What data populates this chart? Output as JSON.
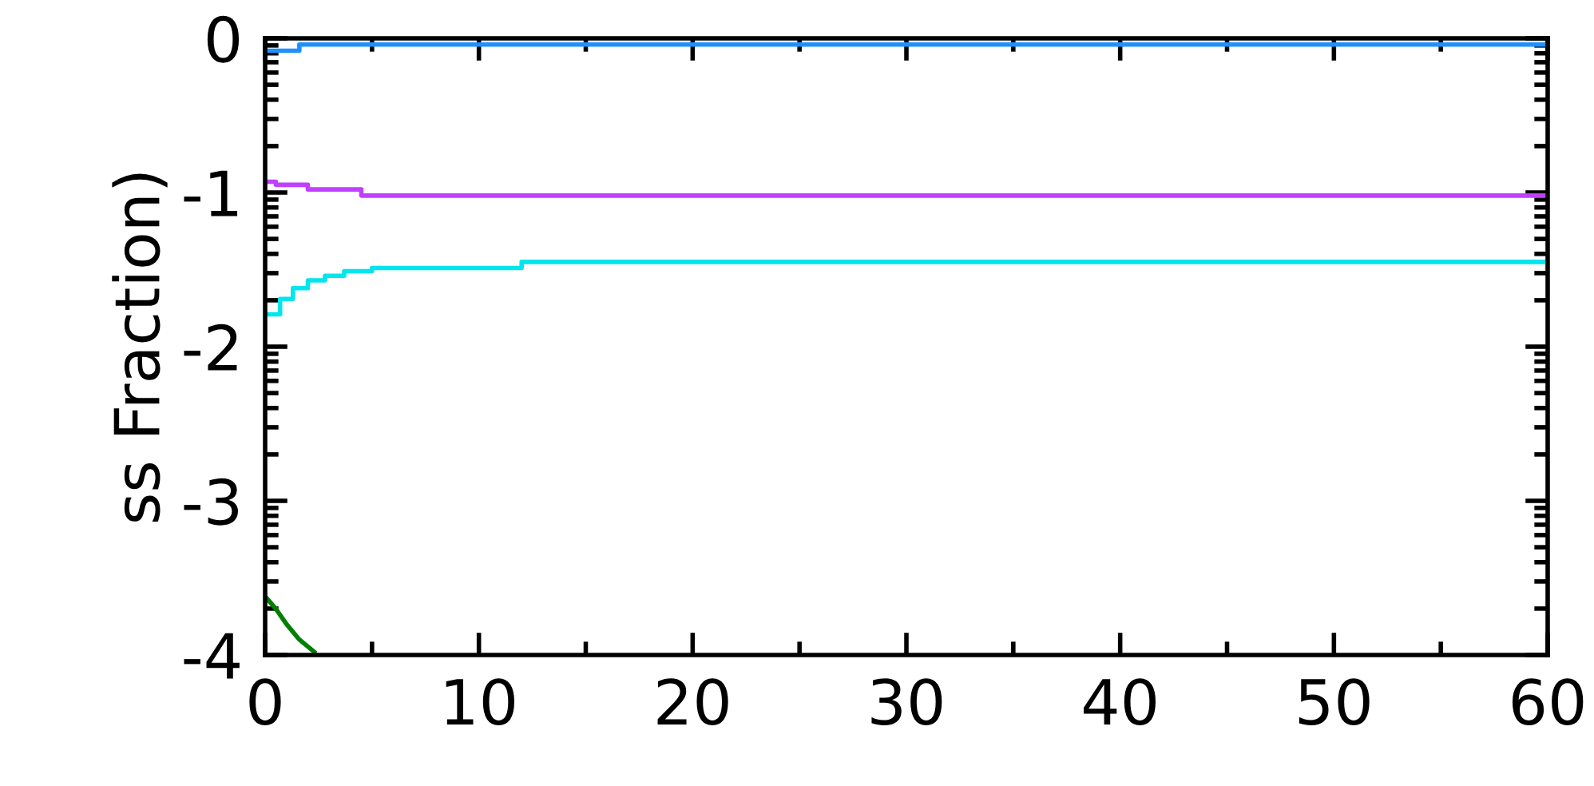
{
  "chart_data": {
    "type": "step",
    "ylabel": "ss Fraction)",
    "xlim": [
      0,
      60
    ],
    "ylim": [
      -4,
      0
    ],
    "xticks": [
      0,
      {
        "value": 5,
        "label": null
      },
      10,
      {
        "value": 15,
        "label": null
      },
      20,
      {
        "value": 25,
        "label": null
      },
      30,
      {
        "value": 35,
        "label": null
      },
      40,
      {
        "value": 45,
        "label": null
      },
      50,
      {
        "value": 55,
        "label": null
      },
      60
    ],
    "yticks": [
      -4,
      {
        "value": -3.699,
        "label": null
      },
      {
        "value": -3.523,
        "label": null
      },
      {
        "value": -3.398,
        "label": null
      },
      {
        "value": -3.301,
        "label": null
      },
      {
        "value": -3.222,
        "label": null
      },
      {
        "value": -3.155,
        "label": null
      },
      {
        "value": -3.097,
        "label": null
      },
      {
        "value": -3.046,
        "label": null
      },
      -3,
      {
        "value": -2.699,
        "label": null
      },
      {
        "value": -2.523,
        "label": null
      },
      {
        "value": -2.398,
        "label": null
      },
      {
        "value": -2.301,
        "label": null
      },
      {
        "value": -2.222,
        "label": null
      },
      {
        "value": -2.155,
        "label": null
      },
      {
        "value": -2.097,
        "label": null
      },
      {
        "value": -2.046,
        "label": null
      },
      -2,
      {
        "value": -1.699,
        "label": null
      },
      {
        "value": -1.523,
        "label": null
      },
      {
        "value": -1.398,
        "label": null
      },
      {
        "value": -1.301,
        "label": null
      },
      {
        "value": -1.222,
        "label": null
      },
      {
        "value": -1.155,
        "label": null
      },
      {
        "value": -1.097,
        "label": null
      },
      {
        "value": -1.046,
        "label": null
      },
      -1,
      {
        "value": -0.699,
        "label": null
      },
      {
        "value": -0.523,
        "label": null
      },
      {
        "value": -0.398,
        "label": null
      },
      {
        "value": -0.301,
        "label": null
      },
      {
        "value": -0.222,
        "label": null
      },
      {
        "value": -0.155,
        "label": null
      },
      {
        "value": -0.097,
        "label": null
      },
      {
        "value": -0.046,
        "label": null
      },
      0
    ],
    "grid": false,
    "legend": false,
    "series": [
      {
        "color": "#1e90ff",
        "x": [
          0,
          1.6,
          60
        ],
        "values": [
          -0.08,
          -0.04,
          -0.04
        ]
      },
      {
        "color": "#c040ff",
        "x": [
          0,
          0.5,
          2.0,
          4.5,
          60
        ],
        "values": [
          -0.93,
          -0.95,
          -0.98,
          -1.02,
          -1.02
        ]
      },
      {
        "color": "#00e5ee",
        "x": [
          0,
          0.7,
          1.3,
          2.0,
          2.8,
          3.7,
          5.0,
          12.0,
          60
        ],
        "values": [
          -1.79,
          -1.69,
          -1.62,
          -1.57,
          -1.54,
          -1.51,
          -1.49,
          -1.45,
          -1.45
        ]
      },
      {
        "type": "line",
        "color": "#008000",
        "x": [
          0,
          0.5,
          1.0,
          1.6,
          2.3
        ],
        "values": [
          -3.62,
          -3.7,
          -3.8,
          -3.9,
          -3.98
        ]
      }
    ]
  }
}
